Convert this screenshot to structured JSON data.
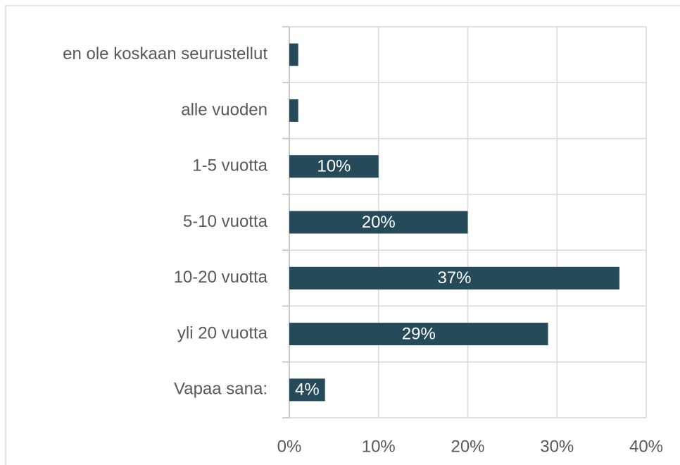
{
  "chart_data": {
    "type": "barh",
    "categories": [
      "en ole koskaan seurustellut",
      "alle vuoden",
      "1-5 vuotta",
      "5-10 vuotta",
      "10-20 vuotta",
      "yli 20 vuotta",
      "Vapaa sana:"
    ],
    "values": [
      1,
      1,
      10,
      20,
      37,
      29,
      4
    ],
    "value_labels": [
      null,
      null,
      "10%",
      "20%",
      "37%",
      "29%",
      "4%"
    ],
    "color": "#254b5a",
    "xlim": [
      0,
      40
    ],
    "xticks": [
      {
        "value": 0,
        "label": "0%"
      },
      {
        "value": 10,
        "label": "10%"
      },
      {
        "value": 20,
        "label": "20%"
      },
      {
        "value": 30,
        "label": "30%"
      },
      {
        "value": 40,
        "label": "40%"
      }
    ],
    "grid": true
  }
}
